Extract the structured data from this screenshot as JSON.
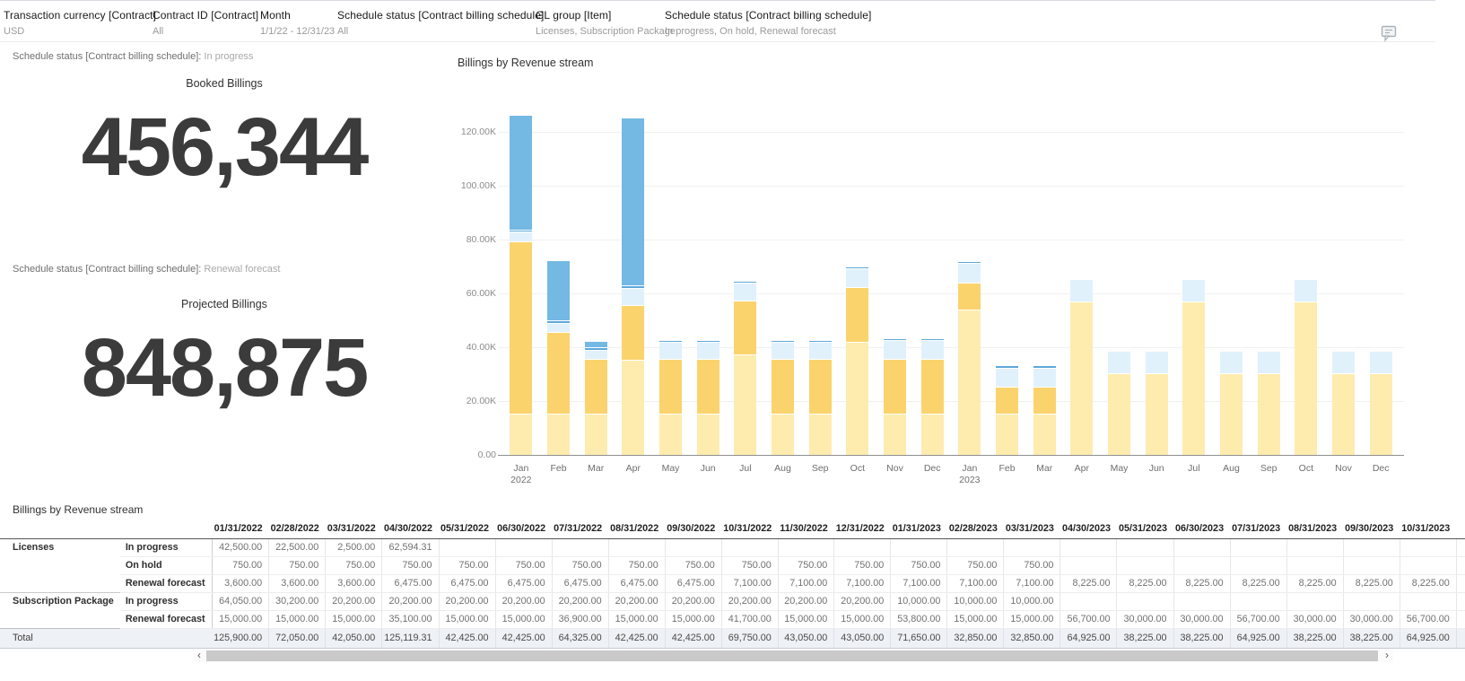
{
  "filter_bar": {
    "items": [
      {
        "label": "Transaction currency [Contract]",
        "value": "USD"
      },
      {
        "label": "Contract ID [Contract]",
        "value": "All"
      },
      {
        "label": "Month",
        "value": "1/1/22 - 12/31/23"
      },
      {
        "label": "Schedule status [Contract billing schedule]",
        "value": "All"
      },
      {
        "label": "GL group [Item]",
        "value": "Licenses, Subscription Package"
      },
      {
        "label": "Schedule status [Contract billing schedule]",
        "value": "In progress, On hold, Renewal forecast"
      }
    ]
  },
  "kpis": [
    {
      "filter_label": "Schedule status [Contract billing schedule]:",
      "filter_value": "In progress",
      "title": "Booked Billings",
      "value": "456,344"
    },
    {
      "filter_label": "Schedule status [Contract billing schedule]:",
      "filter_value": "Renewal forecast",
      "title": "Projected Billings",
      "value": "848,875"
    }
  ],
  "chart_data": {
    "type": "bar",
    "stacked": true,
    "title": "Billings by Revenue stream",
    "x": [
      "Jan",
      "Feb",
      "Mar",
      "Apr",
      "May",
      "Jun",
      "Jul",
      "Aug",
      "Sep",
      "Oct",
      "Nov",
      "Dec",
      "Jan",
      "Feb",
      "Mar",
      "Apr",
      "May",
      "Jun",
      "Jul",
      "Aug",
      "Sep",
      "Oct",
      "Nov",
      "Dec"
    ],
    "x_years": {
      "0": "2022",
      "12": "2023"
    },
    "ylim": [
      0,
      130000
    ],
    "grid": true,
    "legend": "none",
    "yticks": [
      {
        "label": "0.00",
        "value": 0
      },
      {
        "label": "20.00K",
        "value": 20000
      },
      {
        "label": "40.00K",
        "value": 40000
      },
      {
        "label": "60.00K",
        "value": 60000
      },
      {
        "label": "80.00K",
        "value": 80000
      },
      {
        "label": "100.00K",
        "value": 100000
      },
      {
        "label": "120.00K",
        "value": 120000
      }
    ],
    "series": [
      {
        "name": "Subscription Package - Renewal forecast",
        "color": "#fdecae",
        "values": [
          15000,
          15000,
          15000,
          35100,
          15000,
          15000,
          36900,
          15000,
          15000,
          41700,
          15000,
          15000,
          53800,
          15000,
          15000,
          56700,
          30000,
          30000,
          56700,
          30000,
          30000,
          56700,
          30000,
          30000
        ]
      },
      {
        "name": "Subscription Package - In progress",
        "color": "#fbd36d",
        "values": [
          64050,
          30200,
          20200,
          20200,
          20200,
          20200,
          20200,
          20200,
          20200,
          20200,
          20200,
          20200,
          10000,
          10000,
          10000,
          0,
          0,
          0,
          0,
          0,
          0,
          0,
          0,
          0
        ]
      },
      {
        "name": "Licenses - Renewal forecast",
        "color": "#e1f1fc",
        "values": [
          3600,
          3600,
          3600,
          6475,
          6475,
          6475,
          6475,
          6475,
          6475,
          7100,
          7100,
          7100,
          7100,
          7100,
          7100,
          8225,
          8225,
          8225,
          8225,
          8225,
          8225,
          8225,
          8225,
          8225
        ]
      },
      {
        "name": "Licenses - On hold",
        "color": "#5ea8d9",
        "values": [
          750,
          750,
          750,
          750,
          750,
          750,
          750,
          750,
          750,
          750,
          750,
          750,
          750,
          750,
          750,
          0,
          0,
          0,
          0,
          0,
          0,
          0,
          0,
          0
        ]
      },
      {
        "name": "Licenses - In progress",
        "color": "#74b8e4",
        "values": [
          42500,
          22500,
          2500,
          62594.31,
          0,
          0,
          0,
          0,
          0,
          0,
          0,
          0,
          0,
          0,
          0,
          0,
          0,
          0,
          0,
          0,
          0,
          0,
          0,
          0
        ]
      }
    ]
  },
  "table": {
    "title": "Billings by Revenue stream",
    "columns": [
      "01/31/2022",
      "02/28/2022",
      "03/31/2022",
      "04/30/2022",
      "05/31/2022",
      "06/30/2022",
      "07/31/2022",
      "08/31/2022",
      "09/30/2022",
      "10/31/2022",
      "11/30/2022",
      "12/31/2022",
      "01/31/2023",
      "02/28/2023",
      "03/31/2023",
      "04/30/2023",
      "05/31/2023",
      "06/30/2023",
      "07/31/2023",
      "08/31/2023",
      "09/30/2023",
      "10/31/2023"
    ],
    "rows": [
      {
        "group": "Licenses",
        "status": "In progress",
        "values": [
          "42,500.00",
          "22,500.00",
          "2,500.00",
          "62,594.31",
          "",
          "",
          "",
          "",
          "",
          "",
          "",
          "",
          "",
          "",
          "",
          "",
          "",
          "",
          "",
          "",
          "",
          ""
        ]
      },
      {
        "group": "",
        "status": "On hold",
        "values": [
          "750.00",
          "750.00",
          "750.00",
          "750.00",
          "750.00",
          "750.00",
          "750.00",
          "750.00",
          "750.00",
          "750.00",
          "750.00",
          "750.00",
          "750.00",
          "750.00",
          "750.00",
          "",
          "",
          "",
          "",
          "",
          "",
          ""
        ]
      },
      {
        "group": "",
        "status": "Renewal forecast",
        "values": [
          "3,600.00",
          "3,600.00",
          "3,600.00",
          "6,475.00",
          "6,475.00",
          "6,475.00",
          "6,475.00",
          "6,475.00",
          "6,475.00",
          "7,100.00",
          "7,100.00",
          "7,100.00",
          "7,100.00",
          "7,100.00",
          "7,100.00",
          "8,225.00",
          "8,225.00",
          "8,225.00",
          "8,225.00",
          "8,225.00",
          "8,225.00",
          "8,225.00"
        ]
      },
      {
        "group": "Subscription Package",
        "status": "In progress",
        "values": [
          "64,050.00",
          "30,200.00",
          "20,200.00",
          "20,200.00",
          "20,200.00",
          "20,200.00",
          "20,200.00",
          "20,200.00",
          "20,200.00",
          "20,200.00",
          "20,200.00",
          "20,200.00",
          "10,000.00",
          "10,000.00",
          "10,000.00",
          "",
          "",
          "",
          "",
          "",
          "",
          ""
        ]
      },
      {
        "group": "",
        "status": "Renewal forecast",
        "values": [
          "15,000.00",
          "15,000.00",
          "15,000.00",
          "35,100.00",
          "15,000.00",
          "15,000.00",
          "36,900.00",
          "15,000.00",
          "15,000.00",
          "41,700.00",
          "15,000.00",
          "15,000.00",
          "53,800.00",
          "15,000.00",
          "15,000.00",
          "56,700.00",
          "30,000.00",
          "30,000.00",
          "56,700.00",
          "30,000.00",
          "30,000.00",
          "56,700.00"
        ]
      }
    ],
    "total_row": {
      "label": "Total",
      "values": [
        "125,900.00",
        "72,050.00",
        "42,050.00",
        "125,119.31",
        "42,425.00",
        "42,425.00",
        "64,325.00",
        "42,425.00",
        "42,425.00",
        "69,750.00",
        "43,050.00",
        "43,050.00",
        "71,650.00",
        "32,850.00",
        "32,850.00",
        "64,925.00",
        "38,225.00",
        "38,225.00",
        "64,925.00",
        "38,225.00",
        "38,225.00",
        "64,925.00"
      ]
    },
    "scrollbar": {
      "left_arrow": "‹",
      "right_arrow": "›"
    }
  }
}
